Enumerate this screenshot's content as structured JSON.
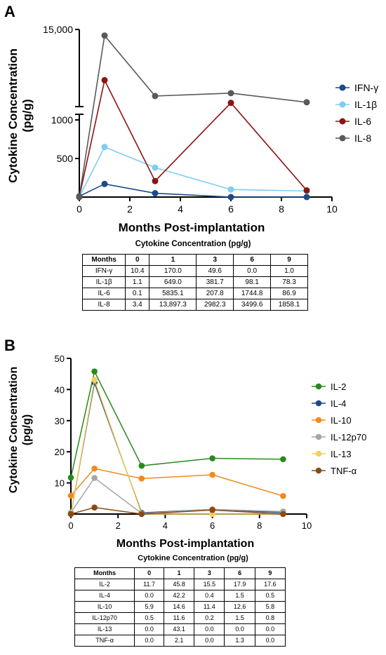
{
  "panel_a": {
    "letter": "A",
    "table_caption": "Cytokine Concentration (pg/g)",
    "table": {
      "header": [
        "Months",
        "0",
        "1",
        "3",
        "6",
        "9"
      ],
      "rows": [
        [
          "IFN-γ",
          "10.4",
          "170.0",
          "49.6",
          "0.0",
          "1.0"
        ],
        [
          "IL-1β",
          "1.1",
          "649.0",
          "381.7",
          "98.1",
          "78.3"
        ],
        [
          "IL-6",
          "0.1",
          "5835.1",
          "207.8",
          "1744.8",
          "86.9"
        ],
        [
          "IL-8",
          "3.4",
          "13,897.3",
          "2982.3",
          "3499.6",
          "1858.1"
        ]
      ]
    }
  },
  "panel_b": {
    "letter": "B",
    "table_caption": "Cytokine Concentration (pg/g)",
    "table": {
      "header": [
        "Months",
        "0",
        "1",
        "3",
        "6",
        "9"
      ],
      "rows": [
        [
          "IL-2",
          "11.7",
          "45.8",
          "15.5",
          "17.9",
          "17.6"
        ],
        [
          "IL-4",
          "0.0",
          "42.2",
          "0.4",
          "1.5",
          "0.5"
        ],
        [
          "IL-10",
          "5.9",
          "14.6",
          "11.4",
          "12.6",
          "5.8"
        ],
        [
          "IL-12p70",
          "0.5",
          "11.6",
          "0.2",
          "1.5",
          "0.8"
        ],
        [
          "IL-13",
          "0.0",
          "43.1",
          "0.0",
          "0.0",
          "0.0"
        ],
        [
          "TNF-α",
          "0.0",
          "2.1",
          "0.0",
          "1.3",
          "0.0"
        ]
      ]
    }
  },
  "chart_data": [
    {
      "type": "line",
      "xlabel": "Months Post-implantation",
      "ylabel": [
        "Cytokine Concentration",
        "(pg/g)"
      ],
      "xlim": [
        0,
        10
      ],
      "x_ticks": [
        0,
        2,
        4,
        6,
        8,
        10
      ],
      "y_axis_break": true,
      "y_ticks_lower": [
        500,
        1000
      ],
      "y_ticks_upper": [
        15000
      ],
      "y_tick_labels_lower": [
        "500",
        "1000"
      ],
      "y_tick_labels_upper": [
        "15,000"
      ],
      "x": [
        0,
        1,
        3,
        6,
        9
      ],
      "legend_position": "right",
      "series": [
        {
          "name": "IFN-γ",
          "color": "#1a4a8a",
          "values": [
            10.4,
            170.0,
            49.6,
            0.0,
            1.0
          ]
        },
        {
          "name": "IL-1β",
          "color": "#7fcdf0",
          "values": [
            1.1,
            649.0,
            381.7,
            98.1,
            78.3
          ]
        },
        {
          "name": "IL-6",
          "color": "#8b1414",
          "values": [
            0.1,
            5835.1,
            207.8,
            1744.8,
            86.9
          ]
        },
        {
          "name": "IL-8",
          "color": "#595959",
          "values": [
            3.4,
            13897.3,
            2982.3,
            3499.6,
            1858.1
          ]
        }
      ]
    },
    {
      "type": "line",
      "xlabel": "Months Post-implantation",
      "ylabel": [
        "Cytokine Concentration",
        "(pg/g)"
      ],
      "xlim": [
        0,
        10
      ],
      "ylim": [
        0,
        50
      ],
      "x_ticks": [
        0,
        2,
        4,
        6,
        8,
        10
      ],
      "y_ticks": [
        10,
        20,
        30,
        40,
        50
      ],
      "x": [
        0,
        1,
        3,
        6,
        9
      ],
      "legend_position": "right",
      "series": [
        {
          "name": "IL-2",
          "color": "#2a8a1e",
          "values": [
            11.7,
            45.8,
            15.5,
            17.9,
            17.6
          ]
        },
        {
          "name": "IL-4",
          "color": "#1a4a8a",
          "values": [
            0.0,
            42.2,
            0.4,
            1.5,
            0.5
          ]
        },
        {
          "name": "IL-10",
          "color": "#f28a1e",
          "values": [
            5.9,
            14.6,
            11.4,
            12.6,
            5.8
          ]
        },
        {
          "name": "IL-12p70",
          "color": "#a6a6a6",
          "values": [
            0.5,
            11.6,
            0.2,
            1.5,
            0.8
          ]
        },
        {
          "name": "IL-13",
          "color": "#f5cf5a",
          "values": [
            0.0,
            43.1,
            0.0,
            0.0,
            0.0
          ]
        },
        {
          "name": "TNF-α",
          "color": "#8a4a14",
          "values": [
            0.0,
            2.1,
            0.0,
            1.3,
            0.0
          ]
        }
      ]
    }
  ]
}
